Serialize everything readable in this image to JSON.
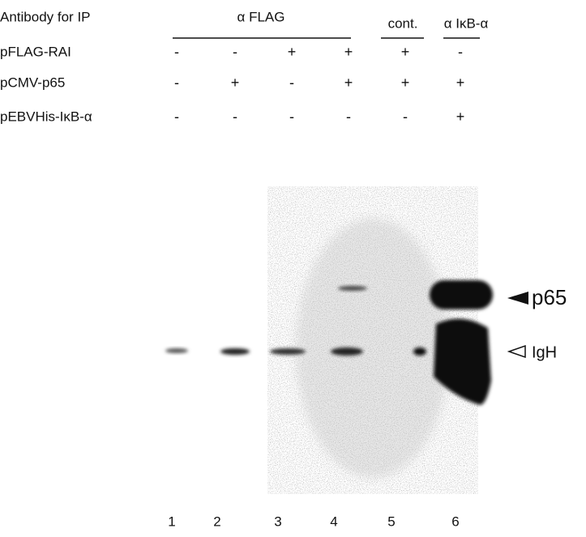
{
  "header": {
    "label": "Antibody for IP",
    "groups": [
      {
        "label": "α FLAG"
      },
      {
        "label": "cont."
      },
      {
        "label": "α IκB-α"
      }
    ]
  },
  "rows": [
    {
      "label": "pFLAG-RAI",
      "marks": [
        "-",
        "-",
        "+",
        "+",
        "+",
        "-"
      ]
    },
    {
      "label": "pCMV-p65",
      "marks": [
        "-",
        "+",
        "-",
        "+",
        "+",
        "+"
      ]
    },
    {
      "label": "pEBVHis-IκB-α",
      "marks": [
        "-",
        "-",
        "-",
        "-",
        "-",
        "+"
      ]
    }
  ],
  "band_labels": [
    "p65",
    "IgH"
  ],
  "lanes": [
    "1",
    "2",
    "3",
    "4",
    "5",
    "6"
  ]
}
